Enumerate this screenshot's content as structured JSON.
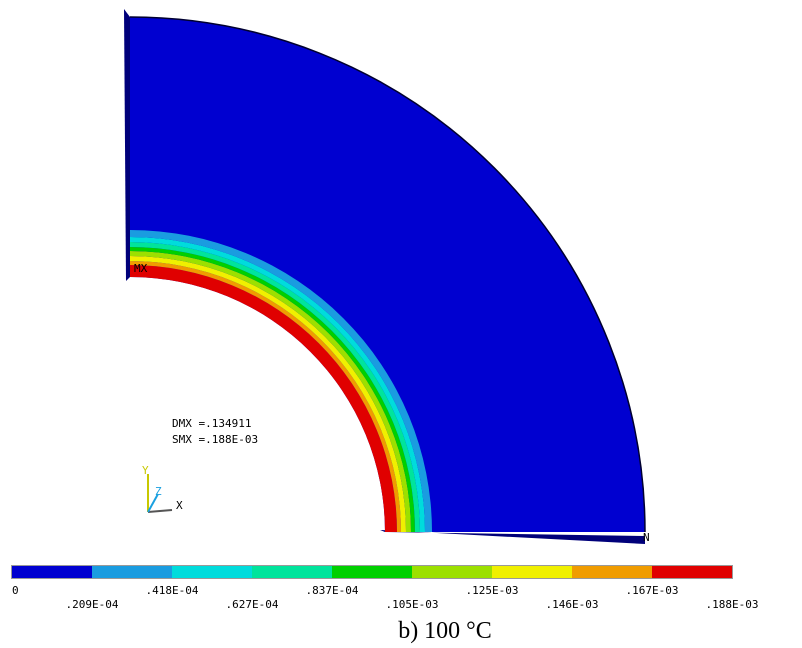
{
  "plot": {
    "node_labels": [
      "MX",
      "N"
    ],
    "annotations": [
      "DMX =.134911",
      "SMX =.188E-03"
    ],
    "axes": [
      "Y",
      "Z",
      "X"
    ],
    "legend": {
      "labels": [
        "0",
        ".209E-04",
        ".418E-04",
        ".627E-04",
        ".837E-04",
        ".105E-03",
        ".125E-03",
        ".146E-03",
        ".167E-03",
        ".188E-03"
      ],
      "colors": [
        "#0000d0",
        "#1a9ce0",
        "#00dcdc",
        "#00e49c",
        "#00d000",
        "#9ce000",
        "#f0f000",
        "#f09c00",
        "#e00000"
      ]
    }
  },
  "caption": "b) 100 °C"
}
